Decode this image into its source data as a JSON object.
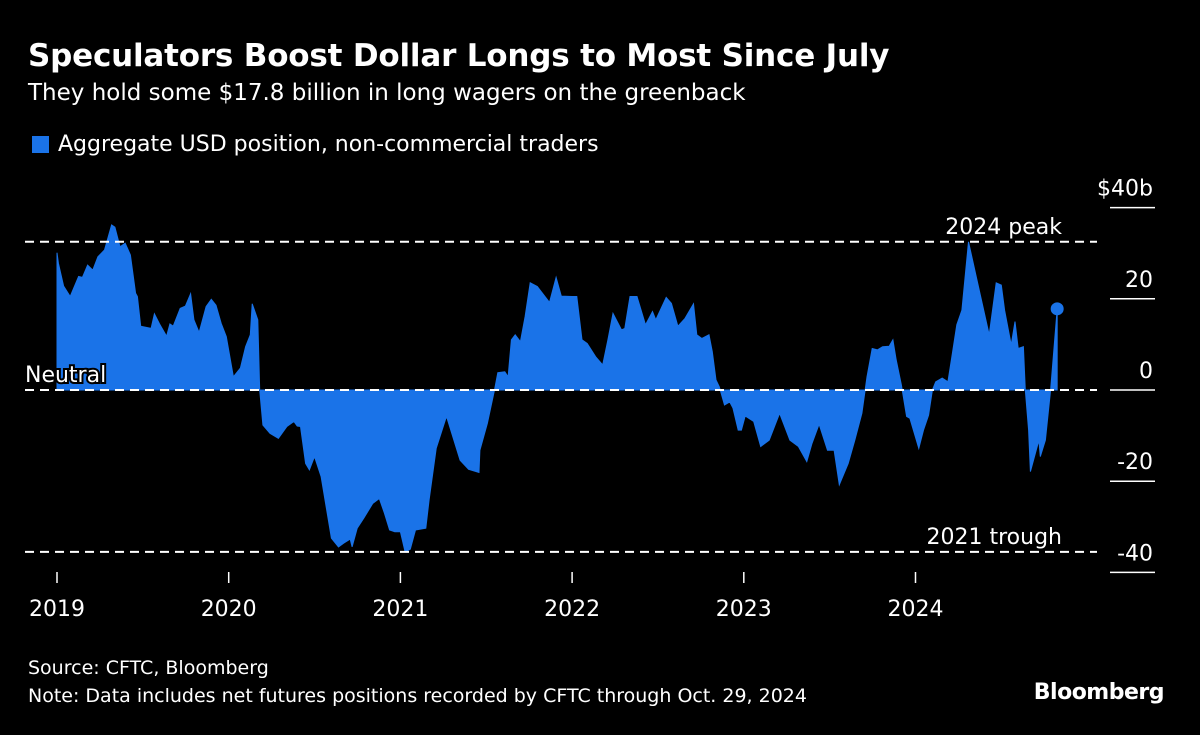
{
  "header": {
    "title": "Speculators Boost Dollar Longs to Most Since July",
    "subtitle": "They hold some $17.8 billion in long wagers on the greenback"
  },
  "footer": {
    "source": "Source: CFTC, Bloomberg",
    "note": "Note: Data includes net futures positions recorded by CFTC through Oct. 29, 2024",
    "logo": "Bloomberg"
  },
  "colors": {
    "series": "#1a73e8",
    "background": "#000000",
    "text": "#ffffff"
  },
  "chart_data": {
    "type": "area",
    "title": "Speculators Boost Dollar Longs to Most Since July",
    "subtitle": "They hold some $17.8 billion in long wagers on the greenback",
    "xlabel": "",
    "ylabel": "",
    "y_unit_label": "$40b",
    "ylim": [
      -40,
      40
    ],
    "y_ticks": [
      40,
      20,
      0,
      -20,
      -40
    ],
    "y_tick_labels": [
      "$40b",
      "20",
      "0",
      "-20",
      "-40"
    ],
    "x_ticks": [
      "2019",
      "2020",
      "2021",
      "2022",
      "2023",
      "2024"
    ],
    "grid": false,
    "legend": {
      "placement": "top-left",
      "entries": [
        "Aggregate USD position, non-commercial traders"
      ]
    },
    "reference_lines": [
      {
        "label": "2024 peak",
        "value": 32.5
      },
      {
        "label": "Neutral",
        "value": 0
      },
      {
        "label": "2021 trough",
        "value": -35.5
      }
    ],
    "series": [
      {
        "name": "Aggregate USD position, non-commercial traders",
        "last_point_marker": true,
        "points": [
          [
            "2019-01-01",
            30.1
          ],
          [
            "2019-01-04",
            27.8
          ],
          [
            "2019-01-15",
            22.8
          ],
          [
            "2019-01-29",
            20.5
          ],
          [
            "2019-02-16",
            24.9
          ],
          [
            "2019-02-24",
            24.7
          ],
          [
            "2019-03-07",
            27.4
          ],
          [
            "2019-03-18",
            26.3
          ],
          [
            "2019-03-29",
            29.2
          ],
          [
            "2019-04-12",
            30.7
          ],
          [
            "2019-04-27",
            36.2
          ],
          [
            "2019-05-04",
            35.7
          ],
          [
            "2019-05-15",
            31.4
          ],
          [
            "2019-05-26",
            32.2
          ],
          [
            "2019-06-06",
            29.6
          ],
          [
            "2019-06-17",
            21.2
          ],
          [
            "2019-06-21",
            20.5
          ],
          [
            "2019-06-28",
            14.0
          ],
          [
            "2019-07-20",
            13.5
          ],
          [
            "2019-07-27",
            16.7
          ],
          [
            "2019-08-07",
            14.5
          ],
          [
            "2019-08-22",
            11.8
          ],
          [
            "2019-08-29",
            14.5
          ],
          [
            "2019-09-05",
            14.0
          ],
          [
            "2019-09-20",
            17.9
          ],
          [
            "2019-10-01",
            18.4
          ],
          [
            "2019-10-12",
            21.1
          ],
          [
            "2019-10-19",
            15.4
          ],
          [
            "2019-10-30",
            12.6
          ],
          [
            "2019-11-14",
            18.3
          ],
          [
            "2019-11-25",
            19.9
          ],
          [
            "2019-12-05",
            18.6
          ],
          [
            "2019-12-16",
            14.6
          ],
          [
            "2019-12-27",
            11.7
          ],
          [
            "2020-01-11",
            2.9
          ],
          [
            "2020-01-26",
            4.8
          ],
          [
            "2020-02-06",
            9.5
          ],
          [
            "2020-02-16",
            12.1
          ],
          [
            "2020-02-20",
            18.9
          ],
          [
            "2020-03-03",
            15.4
          ],
          [
            "2020-03-07",
            0
          ],
          [
            "2020-03-14",
            -7.7
          ],
          [
            "2020-03-29",
            -9.5
          ],
          [
            "2020-04-16",
            -10.6
          ],
          [
            "2020-05-04",
            -8.0
          ],
          [
            "2020-05-19",
            -6.9
          ],
          [
            "2020-05-26",
            -7.9
          ],
          [
            "2020-06-02",
            -8.0
          ],
          [
            "2020-06-13",
            -16.1
          ],
          [
            "2020-06-21",
            -17.5
          ],
          [
            "2020-07-02",
            -14.6
          ],
          [
            "2020-07-16",
            -19.0
          ],
          [
            "2020-08-07",
            -32.5
          ],
          [
            "2020-08-22",
            -34.4
          ],
          [
            "2020-09-02",
            -33.6
          ],
          [
            "2020-09-16",
            -32.7
          ],
          [
            "2020-09-20",
            -34.4
          ],
          [
            "2020-10-01",
            -30.3
          ],
          [
            "2020-10-15",
            -28.1
          ],
          [
            "2020-11-03",
            -24.9
          ],
          [
            "2020-11-17",
            -23.8
          ],
          [
            "2020-11-28",
            -27.0
          ],
          [
            "2020-12-09",
            -30.7
          ],
          [
            "2020-12-20",
            -31.1
          ],
          [
            "2021-01-01",
            -31.1
          ],
          [
            "2021-01-11",
            -35.5
          ],
          [
            "2021-01-22",
            -34.9
          ],
          [
            "2021-02-02",
            -30.7
          ],
          [
            "2021-02-24",
            -30.3
          ],
          [
            "2021-03-03",
            -24.1
          ],
          [
            "2021-03-18",
            -12.8
          ],
          [
            "2021-04-09",
            -5.8
          ],
          [
            "2021-05-08",
            -15.4
          ],
          [
            "2021-05-26",
            -17.4
          ],
          [
            "2021-06-17",
            -18.1
          ],
          [
            "2021-06-19",
            -13.2
          ],
          [
            "2021-07-05",
            -7.3
          ],
          [
            "2021-07-20",
            0
          ],
          [
            "2021-07-27",
            3.8
          ],
          [
            "2021-08-11",
            4.0
          ],
          [
            "2021-08-18",
            2.9
          ],
          [
            "2021-08-25",
            11.0
          ],
          [
            "2021-09-02",
            12.1
          ],
          [
            "2021-09-13",
            10.6
          ],
          [
            "2021-09-23",
            16.1
          ],
          [
            "2021-10-04",
            23.5
          ],
          [
            "2021-10-19",
            22.7
          ],
          [
            "2021-11-14",
            19.2
          ],
          [
            "2021-11-28",
            24.7
          ],
          [
            "2021-12-09",
            20.6
          ],
          [
            "2022-01-01",
            20.5
          ],
          [
            "2022-01-11",
            20.5
          ],
          [
            "2022-01-22",
            11.0
          ],
          [
            "2022-02-02",
            10.2
          ],
          [
            "2022-02-20",
            7.3
          ],
          [
            "2022-03-07",
            5.5
          ],
          [
            "2022-03-18",
            11.0
          ],
          [
            "2022-03-29",
            16.8
          ],
          [
            "2022-04-16",
            13.2
          ],
          [
            "2022-04-23",
            13.5
          ],
          [
            "2022-05-04",
            20.5
          ],
          [
            "2022-05-19",
            20.5
          ],
          [
            "2022-06-06",
            14.3
          ],
          [
            "2022-06-21",
            17.2
          ],
          [
            "2022-06-28",
            15.4
          ],
          [
            "2022-07-20",
            20.3
          ],
          [
            "2022-07-31",
            19.0
          ],
          [
            "2022-08-14",
            14.0
          ],
          [
            "2022-08-29",
            15.7
          ],
          [
            "2022-09-16",
            18.9
          ],
          [
            "2022-09-23",
            12.1
          ],
          [
            "2022-10-04",
            11.3
          ],
          [
            "2022-10-19",
            12.1
          ],
          [
            "2022-10-26",
            8.4
          ],
          [
            "2022-11-03",
            2.2
          ],
          [
            "2022-11-10",
            0.7
          ],
          [
            "2022-11-21",
            -3.3
          ],
          [
            "2022-12-02",
            -2.6
          ],
          [
            "2022-12-09",
            -4.0
          ],
          [
            "2022-12-20",
            -8.8
          ],
          [
            "2022-12-27",
            -8.8
          ],
          [
            "2023-01-04",
            -5.7
          ],
          [
            "2023-01-22",
            -6.9
          ],
          [
            "2023-02-06",
            -12.4
          ],
          [
            "2023-02-24",
            -11.0
          ],
          [
            "2023-03-18",
            -5.1
          ],
          [
            "2023-04-09",
            -11.0
          ],
          [
            "2023-04-27",
            -12.4
          ],
          [
            "2023-05-15",
            -15.7
          ],
          [
            "2023-05-26",
            -11.7
          ],
          [
            "2023-06-10",
            -7.5
          ],
          [
            "2023-06-28",
            -13.2
          ],
          [
            "2023-07-12",
            -13.2
          ],
          [
            "2023-07-23",
            -20.8
          ],
          [
            "2023-08-11",
            -16.1
          ],
          [
            "2023-08-25",
            -11.0
          ],
          [
            "2023-09-09",
            -5.1
          ],
          [
            "2023-09-20",
            2.9
          ],
          [
            "2023-10-01",
            9.1
          ],
          [
            "2023-10-12",
            8.8
          ],
          [
            "2023-10-23",
            9.5
          ],
          [
            "2023-11-06",
            9.6
          ],
          [
            "2023-11-14",
            11.0
          ],
          [
            "2023-11-21",
            6.6
          ],
          [
            "2023-12-02",
            1.1
          ],
          [
            "2023-12-13",
            -5.8
          ],
          [
            "2023-12-20",
            -6.2
          ],
          [
            "2024-01-08",
            -12.8
          ],
          [
            "2024-01-18",
            -8.8
          ],
          [
            "2024-01-29",
            -5.5
          ],
          [
            "2024-02-06",
            0
          ],
          [
            "2024-02-13",
            1.8
          ],
          [
            "2024-02-27",
            2.6
          ],
          [
            "2024-03-10",
            1.8
          ],
          [
            "2024-03-18",
            6.9
          ],
          [
            "2024-03-29",
            14.3
          ],
          [
            "2024-04-09",
            17.5
          ],
          [
            "2024-04-23",
            32.5
          ],
          [
            "2024-05-11",
            24.1
          ],
          [
            "2024-06-06",
            12.1
          ],
          [
            "2024-06-21",
            23.5
          ],
          [
            "2024-07-02",
            23.0
          ],
          [
            "2024-07-09",
            17.5
          ],
          [
            "2024-07-23",
            9.9
          ],
          [
            "2024-07-31",
            15.0
          ],
          [
            "2024-08-07",
            9.1
          ],
          [
            "2024-08-18",
            9.5
          ],
          [
            "2024-08-22",
            0
          ],
          [
            "2024-08-29",
            -8.8
          ],
          [
            "2024-09-02",
            -17.9
          ],
          [
            "2024-09-20",
            -11.0
          ],
          [
            "2024-09-23",
            -14.6
          ],
          [
            "2024-10-04",
            -11.0
          ],
          [
            "2024-10-15",
            0
          ],
          [
            "2024-10-29",
            17.8
          ]
        ]
      }
    ]
  }
}
